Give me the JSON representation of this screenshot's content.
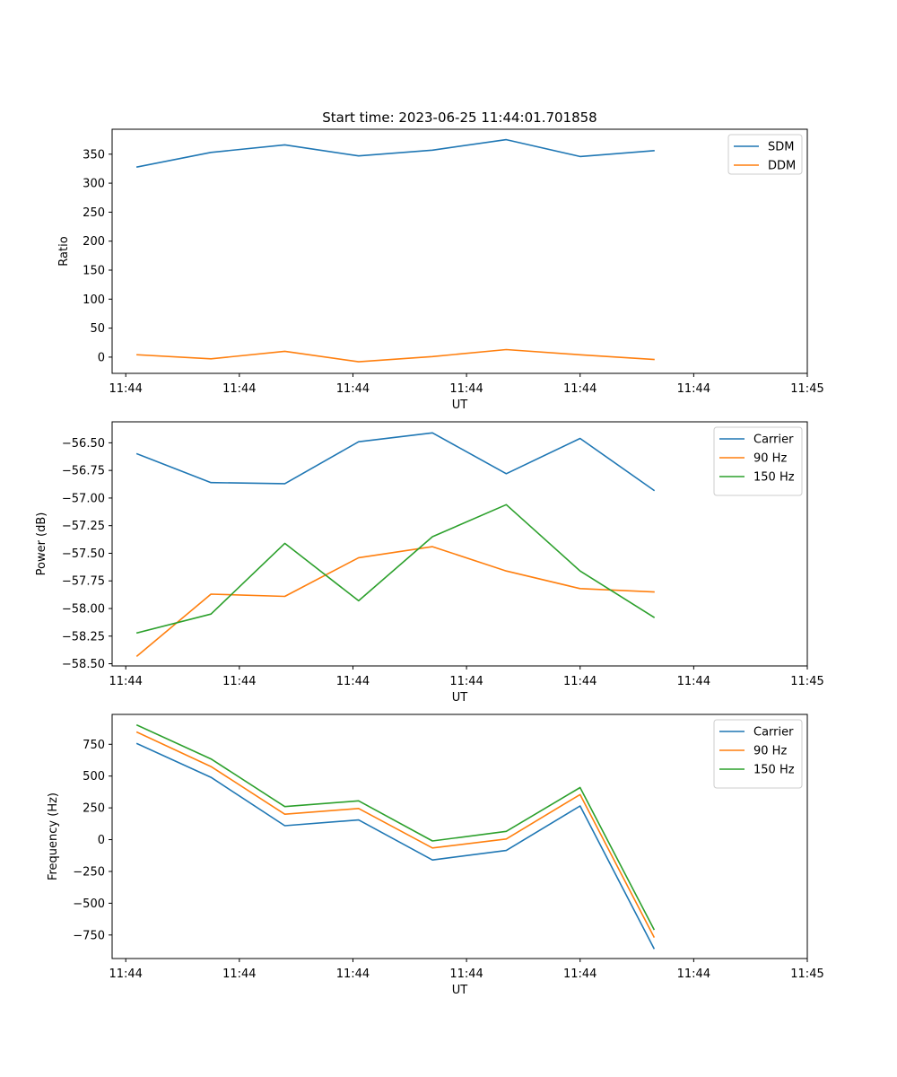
{
  "figure": {
    "title": "Start time: 2023-06-25 11:44:01.701858"
  },
  "chart_data": [
    {
      "type": "line",
      "xlabel": "UT",
      "ylabel": "Ratio",
      "x": [
        1.0,
        1.65,
        2.3,
        2.95,
        3.6,
        4.25,
        4.9,
        5.55
      ],
      "xlim": [
        0.78,
        6.9
      ],
      "xticks": [
        {
          "value": 0.9,
          "label": "11:44"
        },
        {
          "value": 1.9,
          "label": "11:44"
        },
        {
          "value": 2.9,
          "label": "11:44"
        },
        {
          "value": 3.9,
          "label": "11:44"
        },
        {
          "value": 4.9,
          "label": "11:44"
        },
        {
          "value": 5.9,
          "label": "11:44"
        },
        {
          "value": 6.9,
          "label": "11:45"
        }
      ],
      "ylim": [
        -28,
        393
      ],
      "yticks": [
        0,
        50,
        100,
        150,
        200,
        250,
        300,
        350
      ],
      "legend_loc": "upper-right",
      "series": [
        {
          "name": "SDM",
          "color": "#1f77b4",
          "values": [
            328,
            353,
            366,
            347,
            357,
            375,
            346,
            356
          ]
        },
        {
          "name": "DDM",
          "color": "#ff7f0e",
          "values": [
            4,
            -3,
            10,
            -8,
            1,
            13,
            4,
            -4
          ]
        }
      ]
    },
    {
      "type": "line",
      "xlabel": "UT",
      "ylabel": "Power (dB)",
      "x": [
        1.0,
        1.65,
        2.3,
        2.95,
        3.6,
        4.25,
        4.9,
        5.55
      ],
      "xlim": [
        0.78,
        6.9
      ],
      "xticks": [
        {
          "value": 0.9,
          "label": "11:44"
        },
        {
          "value": 1.9,
          "label": "11:44"
        },
        {
          "value": 2.9,
          "label": "11:44"
        },
        {
          "value": 3.9,
          "label": "11:44"
        },
        {
          "value": 4.9,
          "label": "11:44"
        },
        {
          "value": 5.9,
          "label": "11:44"
        },
        {
          "value": 6.9,
          "label": "11:45"
        }
      ],
      "ylim": [
        -58.52,
        -56.31
      ],
      "yticks": [
        -58.5,
        -58.25,
        -58.0,
        -57.75,
        -57.5,
        -57.25,
        -57.0,
        -56.75,
        -56.5
      ],
      "ytick_labels": [
        "−58.50",
        "−58.25",
        "−58.00",
        "−57.75",
        "−57.50",
        "−57.25",
        "−57.00",
        "−56.75",
        "−56.50"
      ],
      "legend_loc": "upper-right",
      "series": [
        {
          "name": "Carrier",
          "color": "#1f77b4",
          "values": [
            -56.6,
            -56.86,
            -56.87,
            -56.49,
            -56.41,
            -56.78,
            -56.46,
            -56.93
          ]
        },
        {
          "name": "90 Hz",
          "color": "#ff7f0e",
          "values": [
            -58.43,
            -57.87,
            -57.89,
            -57.54,
            -57.44,
            -57.66,
            -57.82,
            -57.85
          ]
        },
        {
          "name": "150 Hz",
          "color": "#2ca02c",
          "values": [
            -58.22,
            -58.05,
            -57.41,
            -57.93,
            -57.35,
            -57.06,
            -57.66,
            -58.08
          ]
        }
      ]
    },
    {
      "type": "line",
      "xlabel": "UT",
      "ylabel": "Frequency (Hz)",
      "x": [
        1.0,
        1.65,
        2.3,
        2.95,
        3.6,
        4.25,
        4.9,
        5.55
      ],
      "xlim": [
        0.78,
        6.9
      ],
      "xticks": [
        {
          "value": 0.9,
          "label": "11:44"
        },
        {
          "value": 1.9,
          "label": "11:44"
        },
        {
          "value": 2.9,
          "label": "11:44"
        },
        {
          "value": 3.9,
          "label": "11:44"
        },
        {
          "value": 4.9,
          "label": "11:44"
        },
        {
          "value": 5.9,
          "label": "11:44"
        },
        {
          "value": 6.9,
          "label": "11:45"
        }
      ],
      "ylim": [
        -935,
        985
      ],
      "yticks": [
        -750,
        -500,
        -250,
        0,
        250,
        500,
        750
      ],
      "ytick_labels": [
        "−750",
        "−500",
        "−250",
        "0",
        "250",
        "500",
        "750"
      ],
      "legend_loc": "upper-right",
      "series": [
        {
          "name": "Carrier",
          "color": "#1f77b4",
          "values": [
            755,
            490,
            110,
            155,
            -160,
            -85,
            265,
            -855
          ]
        },
        {
          "name": "90 Hz",
          "color": "#ff7f0e",
          "values": [
            845,
            575,
            200,
            245,
            -65,
            5,
            355,
            -765
          ]
        },
        {
          "name": "150 Hz",
          "color": "#2ca02c",
          "values": [
            900,
            635,
            260,
            305,
            -10,
            65,
            410,
            -705
          ]
        }
      ]
    }
  ]
}
